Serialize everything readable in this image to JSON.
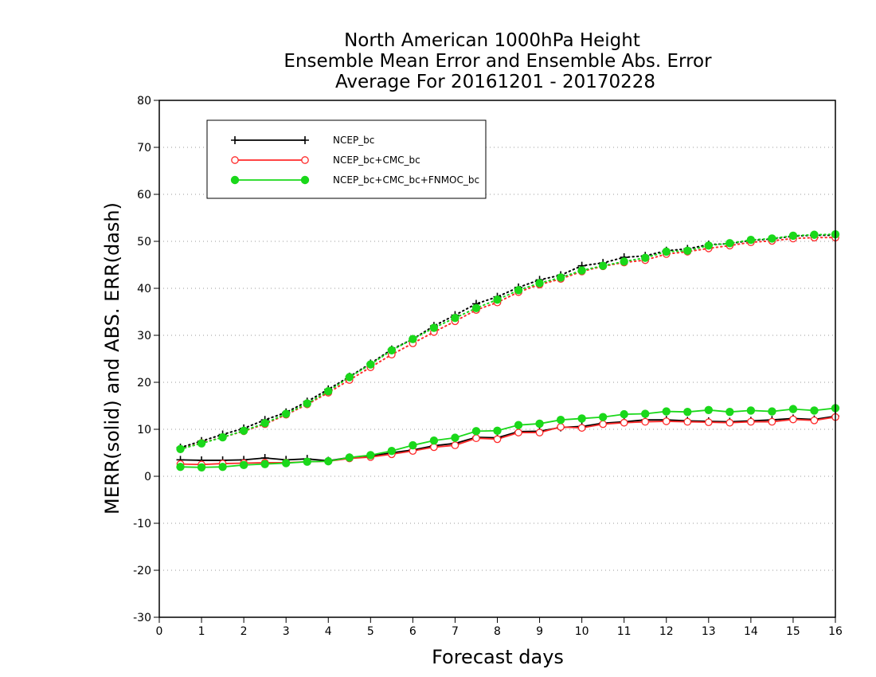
{
  "chart_data": {
    "type": "line",
    "title": [
      "North American 1000hPa Height",
      "Ensemble Mean Error and Ensemble Abs. Error",
      "Average For 20161201 - 20170228"
    ],
    "xlabel": "Forecast days",
    "ylabel": "MERR(solid) and ABS. ERR(dash)",
    "xlim": [
      0,
      16
    ],
    "ylim": [
      -30,
      80
    ],
    "xticks": [
      "0",
      "1",
      "2",
      "3",
      "4",
      "5",
      "6",
      "7",
      "8",
      "9",
      "10",
      "11",
      "12",
      "13",
      "14",
      "15",
      "16"
    ],
    "yticks": [
      "-30",
      "-20",
      "-10",
      "0",
      "10",
      "20",
      "30",
      "40",
      "50",
      "60",
      "70",
      "80"
    ],
    "grid": true,
    "legend_position": "top-left",
    "x": [
      0.5,
      1,
      1.5,
      2,
      2.5,
      3,
      3.5,
      4,
      4.5,
      5,
      5.5,
      6,
      6.5,
      7,
      7.5,
      8,
      8.5,
      9,
      9.5,
      10,
      10.5,
      11,
      11.5,
      12,
      12.5,
      13,
      13.5,
      14,
      14.5,
      15,
      15.5,
      16
    ],
    "series": [
      {
        "name": "NCEP_bc",
        "color": "#000000",
        "marker": "plus",
        "merr": [
          3.5,
          3.4,
          3.4,
          3.5,
          3.9,
          3.5,
          3.7,
          3.3,
          4.0,
          4.3,
          5.0,
          5.6,
          6.5,
          7.0,
          8.3,
          8.2,
          9.5,
          9.6,
          10.4,
          10.6,
          11.3,
          11.6,
          12.0,
          12.0,
          11.8,
          11.7,
          11.6,
          11.8,
          12.0,
          12.3,
          12.1,
          12.8
        ],
        "abs_err": [
          6.1,
          7.5,
          8.9,
          10.2,
          12.0,
          13.6,
          15.9,
          18.5,
          21.2,
          24.0,
          27.0,
          29.2,
          32.0,
          34.3,
          36.7,
          38.2,
          40.2,
          41.8,
          42.8,
          44.8,
          45.4,
          46.6,
          46.9,
          48.0,
          48.4,
          49.3,
          49.5,
          50.2,
          50.5,
          51.1,
          51.3,
          51.3
        ]
      },
      {
        "name": "NCEP_bc+CMC_bc",
        "color": "#ff2a2a",
        "marker": "open-circle",
        "merr": [
          2.6,
          2.5,
          2.7,
          2.8,
          2.9,
          2.9,
          3.1,
          3.2,
          3.8,
          4.1,
          4.7,
          5.4,
          6.2,
          6.6,
          8.1,
          7.9,
          9.3,
          9.3,
          10.5,
          10.3,
          11.1,
          11.4,
          11.6,
          11.7,
          11.6,
          11.5,
          11.4,
          11.6,
          11.6,
          12.1,
          11.9,
          12.6
        ],
        "abs_err": [
          5.8,
          7.1,
          8.3,
          9.6,
          11.1,
          13.1,
          15.3,
          17.8,
          20.5,
          23.2,
          25.9,
          28.3,
          30.7,
          33.0,
          35.4,
          37.0,
          39.2,
          40.8,
          42.0,
          43.6,
          44.7,
          45.5,
          46.0,
          47.3,
          47.8,
          48.5,
          49.1,
          49.8,
          50.1,
          50.6,
          50.8,
          50.8
        ]
      },
      {
        "name": "NCEP_bc+CMC_bc+FNMOC_bc",
        "color": "#1ad81a",
        "marker": "filled-circle",
        "merr": [
          2.0,
          1.9,
          2.0,
          2.4,
          2.6,
          2.8,
          3.1,
          3.2,
          4.0,
          4.5,
          5.4,
          6.6,
          7.6,
          8.2,
          9.6,
          9.7,
          10.9,
          11.2,
          12.0,
          12.3,
          12.6,
          13.2,
          13.3,
          13.8,
          13.7,
          14.1,
          13.7,
          14.0,
          13.8,
          14.3,
          14.0,
          14.5
        ],
        "abs_err": [
          5.8,
          7.0,
          8.3,
          9.7,
          11.3,
          13.3,
          15.5,
          18.1,
          21.1,
          23.8,
          26.8,
          29.2,
          31.6,
          33.7,
          35.8,
          37.6,
          39.6,
          41.1,
          42.3,
          43.8,
          44.8,
          45.7,
          46.5,
          47.8,
          48.0,
          49.1,
          49.6,
          50.3,
          50.6,
          51.2,
          51.4,
          51.5
        ]
      }
    ]
  }
}
